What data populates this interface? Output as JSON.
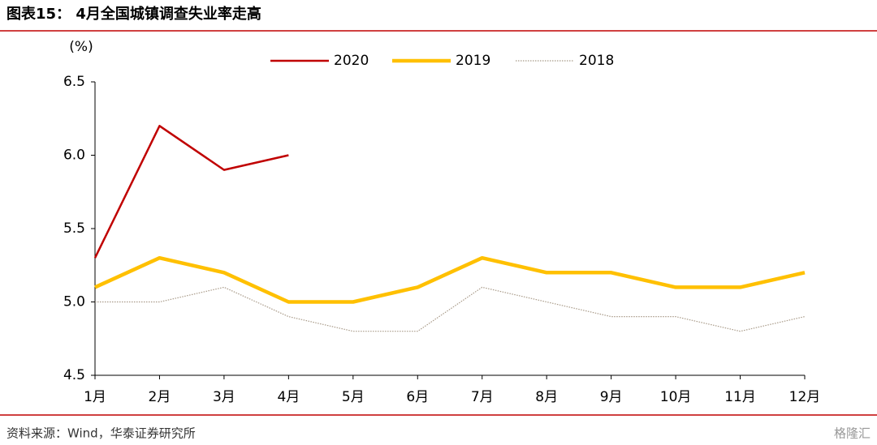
{
  "chart_data": {
    "type": "line",
    "title": "图表15： 4月全国城镇调查失业率走高",
    "y_label": "(%)",
    "categories": [
      "1月",
      "2月",
      "3月",
      "4月",
      "5月",
      "6月",
      "7月",
      "8月",
      "9月",
      "10月",
      "11月",
      "12月"
    ],
    "series": [
      {
        "name": "2020",
        "color": "#c00000",
        "values": [
          5.3,
          6.2,
          5.9,
          6.0,
          null,
          null,
          null,
          null,
          null,
          null,
          null,
          null
        ]
      },
      {
        "name": "2019",
        "color": "#ffc000",
        "values": [
          5.1,
          5.3,
          5.2,
          5.0,
          5.0,
          5.1,
          5.3,
          5.2,
          5.2,
          5.1,
          5.1,
          5.2
        ]
      },
      {
        "name": "2018",
        "color": "#a89a88",
        "values": [
          5.0,
          5.0,
          5.1,
          4.9,
          4.8,
          4.8,
          5.1,
          5.0,
          4.9,
          4.9,
          4.8,
          4.9
        ]
      }
    ],
    "ylim": [
      4.5,
      6.5
    ],
    "yticks": [
      4.5,
      {
        "value": 5,
        "label": "5.0"
      },
      5.5,
      {
        "value": 6,
        "label": "6.0"
      },
      6.5
    ],
    "grid": false,
    "legend": "top"
  },
  "footer": {
    "source": "资料来源：Wind，华泰证券研究所",
    "watermark": "格隆汇"
  }
}
